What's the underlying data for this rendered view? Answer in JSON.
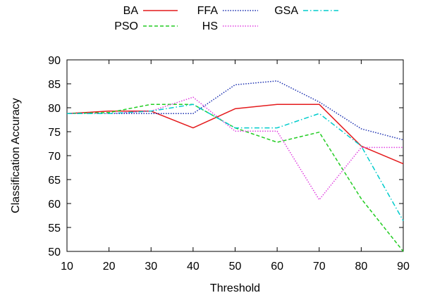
{
  "chart_data": {
    "type": "line",
    "xlabel": "Threshold",
    "ylabel": "Classification Accuracy",
    "xlim": [
      10,
      90
    ],
    "ylim": [
      50,
      90
    ],
    "x_ticks": [
      "10",
      "20",
      "30",
      "40",
      "50",
      "60",
      "70",
      "80",
      "90"
    ],
    "y_ticks": [
      "50",
      "55",
      "60",
      "65",
      "70",
      "75",
      "80",
      "85",
      "90"
    ],
    "grid": false,
    "legend_position": "top",
    "x": [
      10,
      20,
      30,
      40,
      50,
      60,
      70,
      80,
      90
    ],
    "series": [
      {
        "name": "BA",
        "color": "#e41a1c",
        "dash": "solid",
        "values": [
          78.8,
          79.3,
          79.3,
          75.8,
          79.8,
          80.7,
          80.7,
          72.0,
          68.3
        ]
      },
      {
        "name": "PSO",
        "color": "#22cc22",
        "dash": "dashed",
        "values": [
          78.8,
          79.0,
          80.7,
          80.7,
          75.8,
          72.8,
          74.9,
          61.0,
          50.0
        ]
      },
      {
        "name": "FFA",
        "color": "#1a2fb0",
        "dash": "dotted",
        "values": [
          78.8,
          78.8,
          78.8,
          78.8,
          84.8,
          85.6,
          81.2,
          75.6,
          73.3
        ]
      },
      {
        "name": "HS",
        "color": "#e040e0",
        "dash": "dotted",
        "values": [
          78.8,
          78.8,
          79.3,
          82.2,
          75.1,
          75.1,
          60.8,
          71.7,
          71.7
        ]
      },
      {
        "name": "GSA",
        "color": "#00cccc",
        "dash": "dashdot",
        "values": [
          78.8,
          78.8,
          79.3,
          80.7,
          75.8,
          75.8,
          78.8,
          72.0,
          56.4
        ]
      }
    ]
  }
}
